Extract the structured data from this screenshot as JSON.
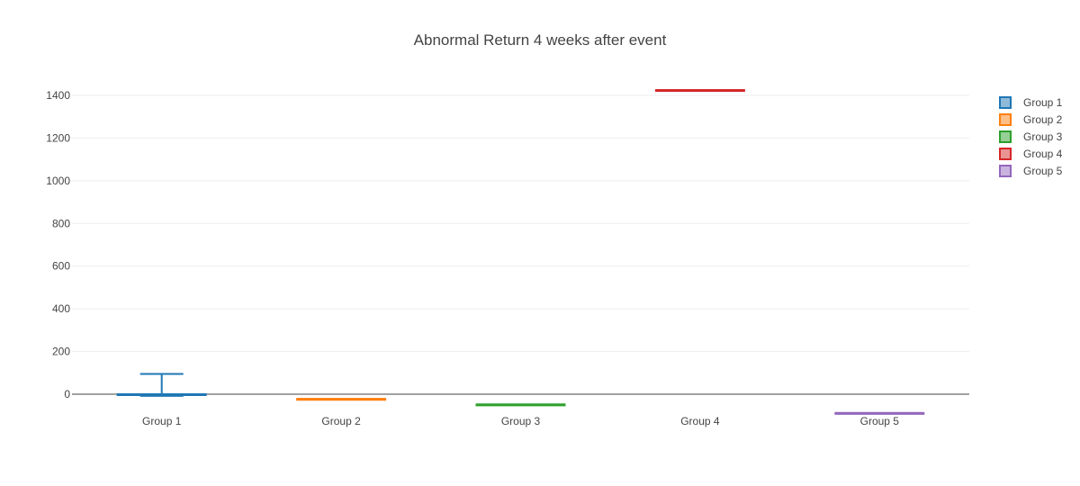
{
  "chart_data": {
    "type": "box",
    "title": "Abnormal Return 4 weeks after event",
    "xlabel": "",
    "ylabel": "",
    "categories": [
      "Group 1",
      "Group 2",
      "Group 3",
      "Group 4",
      "Group 5"
    ],
    "ylim": [
      -90,
      1460
    ],
    "yticks": [
      0,
      200,
      400,
      600,
      800,
      1000,
      1200,
      1400
    ],
    "grid": true,
    "legend_position": "top-right",
    "series": [
      {
        "name": "Group 1",
        "color": "#1f77b4",
        "min": -8,
        "q1": -3,
        "median": 0,
        "q3": 0,
        "max": 95
      },
      {
        "name": "Group 2",
        "color": "#ff7f0e",
        "min": -22,
        "q1": -22,
        "median": -22,
        "q3": -22,
        "max": -22
      },
      {
        "name": "Group 3",
        "color": "#2ca02c",
        "min": -48,
        "q1": -48,
        "median": -48,
        "q3": -48,
        "max": -48
      },
      {
        "name": "Group 4",
        "color": "#d62728",
        "min": 1425,
        "q1": 1425,
        "median": 1425,
        "q3": 1425,
        "max": 1425
      },
      {
        "name": "Group 5",
        "color": "#9467bd",
        "min": -88,
        "q1": -88,
        "median": -88,
        "q3": -88,
        "max": -88
      }
    ]
  }
}
